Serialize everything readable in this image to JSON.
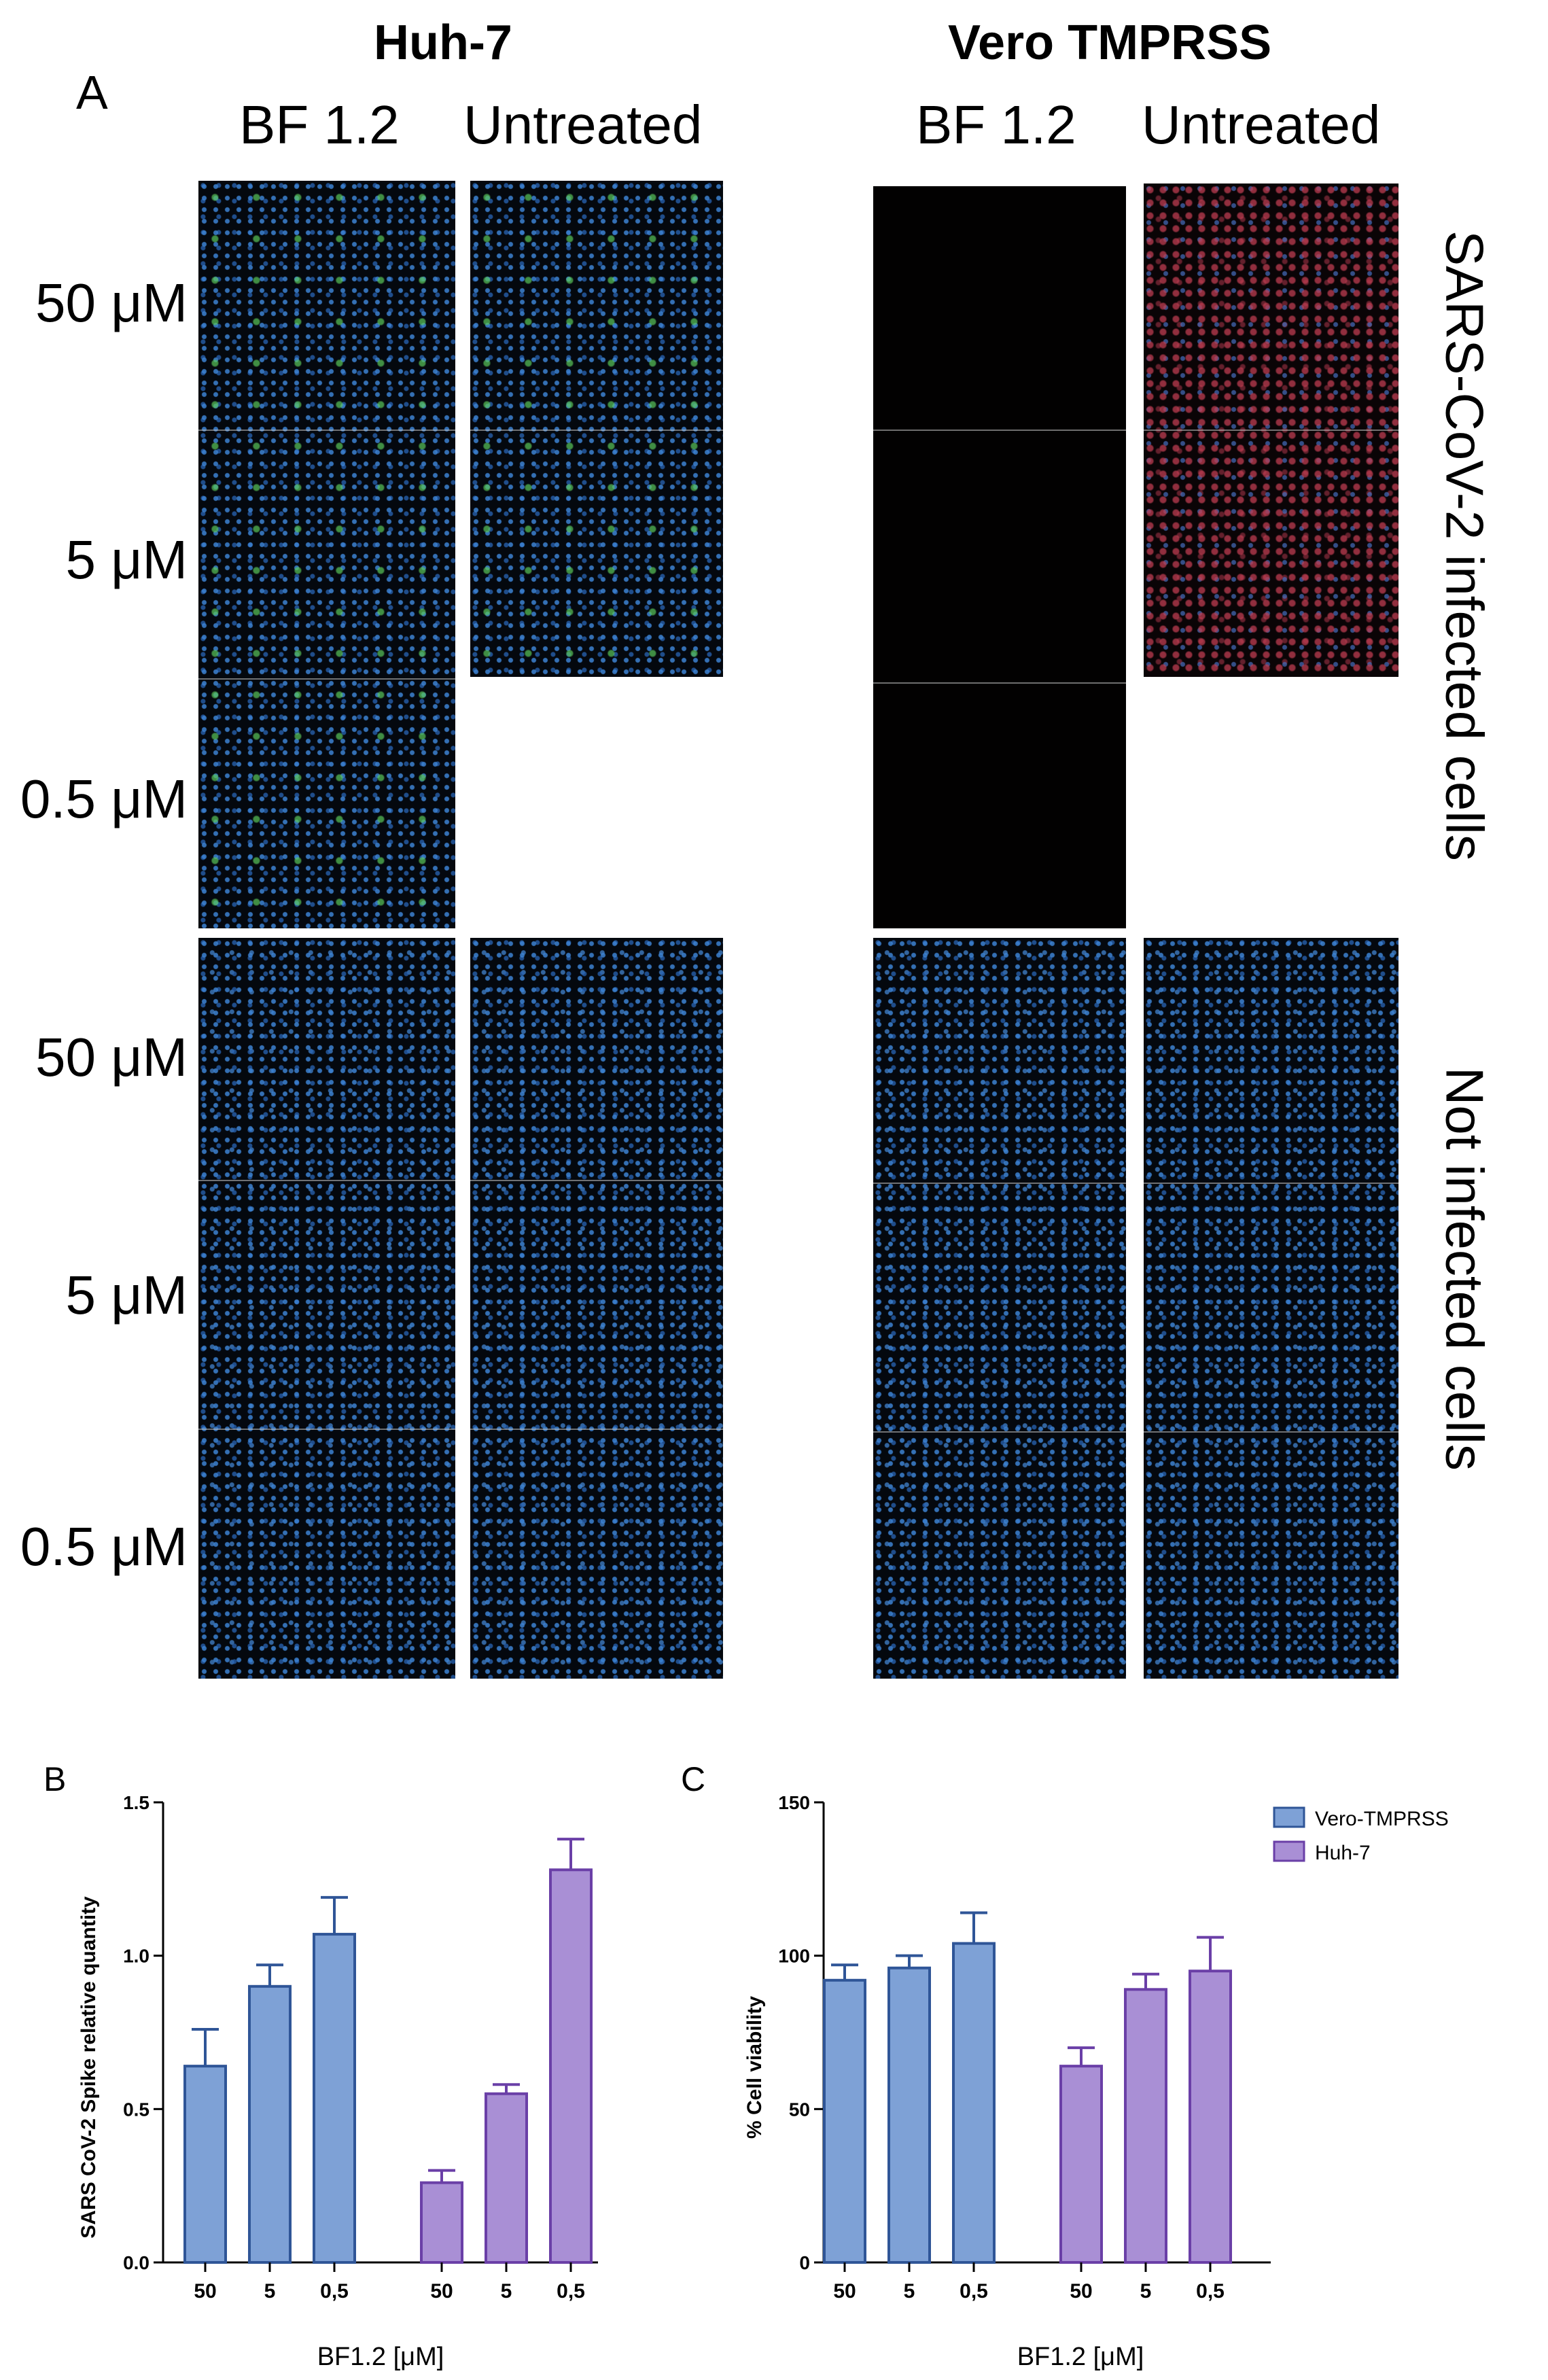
{
  "panel_a": {
    "letter": "A",
    "cell_lines": [
      "Huh-7",
      "Vero TMPRSS"
    ],
    "columns": [
      "BF 1.2",
      "Untreated"
    ],
    "concentrations": [
      "50 μM",
      "5 μM",
      "0.5 μM"
    ],
    "groups": [
      "SARS-CoV-2 infected cells",
      "Not infected cells"
    ]
  },
  "chart_data": [
    {
      "panel_letter": "B",
      "type": "bar",
      "title": "",
      "xlabel": "BF1.2 [μM]",
      "ylabel": "SARS CoV-2 Spike relative quantity",
      "ylim": [
        0,
        1.5
      ],
      "yticks": [
        "0.0",
        "0.5",
        "1.0",
        "1.5"
      ],
      "series": [
        {
          "name": "Vero-TMPRSS",
          "color": "#7ea1d6",
          "edge": "#2f5597",
          "categories": [
            "50",
            "5",
            "0,5"
          ],
          "values": [
            0.64,
            0.9,
            1.07
          ],
          "errors": [
            0.12,
            0.07,
            0.12
          ]
        },
        {
          "name": "Huh-7",
          "color": "#a98fd5",
          "edge": "#6a3fa7",
          "categories": [
            "50",
            "5",
            "0,5"
          ],
          "values": [
            0.26,
            0.55,
            1.28
          ],
          "errors": [
            0.04,
            0.03,
            0.1
          ]
        }
      ]
    },
    {
      "panel_letter": "C",
      "type": "bar",
      "title": "",
      "xlabel": "BF1.2 [μM]",
      "ylabel": "% Cell viability",
      "ylim": [
        0,
        150
      ],
      "yticks": [
        "0",
        "50",
        "100",
        "150"
      ],
      "legend": [
        "Vero-TMPRSS",
        "Huh-7"
      ],
      "series": [
        {
          "name": "Vero-TMPRSS",
          "color": "#7ea1d6",
          "edge": "#2f5597",
          "categories": [
            "50",
            "5",
            "0,5"
          ],
          "values": [
            92,
            96,
            104
          ],
          "errors": [
            5,
            4,
            10
          ]
        },
        {
          "name": "Huh-7",
          "color": "#a98fd5",
          "edge": "#6a3fa7",
          "categories": [
            "50",
            "5",
            "0,5"
          ],
          "values": [
            64,
            89,
            95
          ],
          "errors": [
            6,
            5,
            11
          ]
        }
      ]
    }
  ]
}
